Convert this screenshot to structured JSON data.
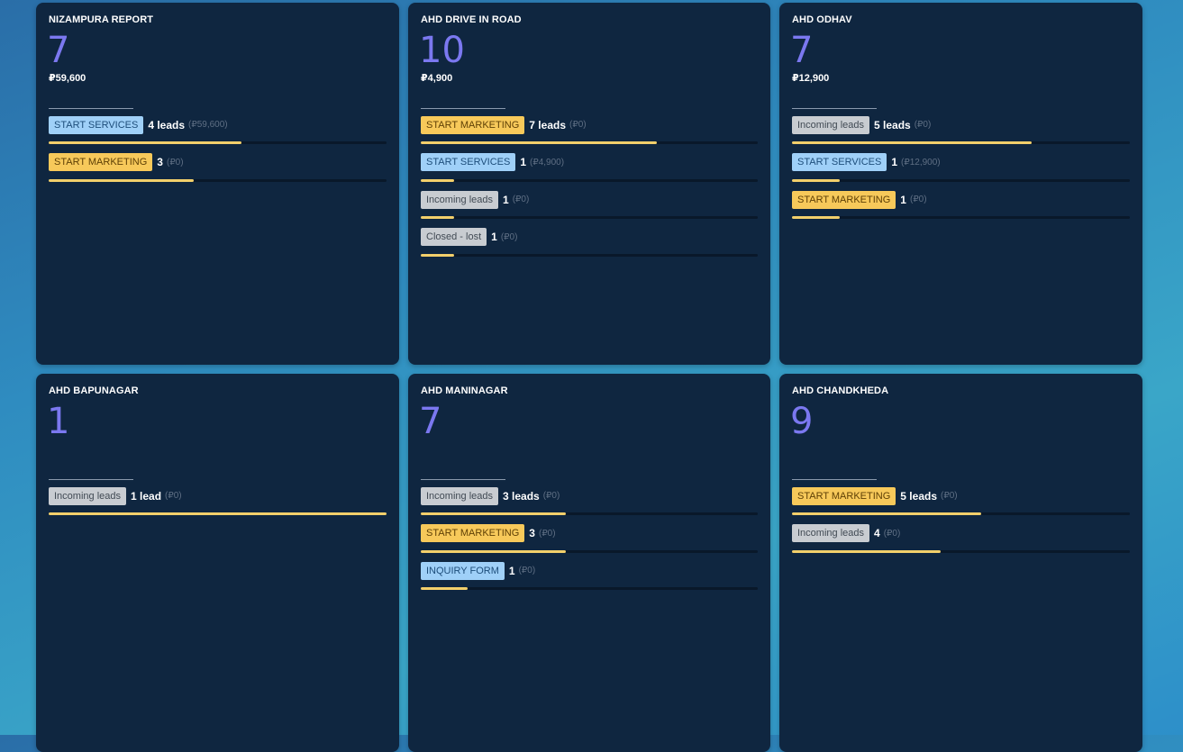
{
  "cards": [
    {
      "title": "NIZAMPURA REPORT",
      "count": "7",
      "amount": "₽59,600",
      "rows": [
        {
          "tag": "START SERVICES",
          "color": "blue",
          "count": "4 leads",
          "amount": "(₽59,600)",
          "fraction": 0.57
        },
        {
          "tag": "START MARKETING",
          "color": "yellow",
          "count": "3",
          "amount": "(₽0)",
          "fraction": 0.43
        }
      ]
    },
    {
      "title": "AHD DRIVE IN ROAD",
      "count": "10",
      "amount": "₽4,900",
      "rows": [
        {
          "tag": "START MARKETING",
          "color": "yellow",
          "count": "7 leads",
          "amount": "(₽0)",
          "fraction": 0.7
        },
        {
          "tag": "START SERVICES",
          "color": "blue",
          "count": "1",
          "amount": "(₽4,900)",
          "fraction": 0.1
        },
        {
          "tag": "Incoming leads",
          "color": "grey",
          "count": "1",
          "amount": "(₽0)",
          "fraction": 0.1
        },
        {
          "tag": "Closed - lost",
          "color": "grey",
          "count": "1",
          "amount": "(₽0)",
          "fraction": 0.1
        }
      ]
    },
    {
      "title": "AHD ODHAV",
      "count": "7",
      "amount": "₽12,900",
      "rows": [
        {
          "tag": "Incoming leads",
          "color": "grey",
          "count": "5 leads",
          "amount": "(₽0)",
          "fraction": 0.71
        },
        {
          "tag": "START SERVICES",
          "color": "blue",
          "count": "1",
          "amount": "(₽12,900)",
          "fraction": 0.14
        },
        {
          "tag": "START MARKETING",
          "color": "yellow",
          "count": "1",
          "amount": "(₽0)",
          "fraction": 0.14
        }
      ]
    },
    {
      "title": "AHD BAPUNAGAR",
      "count": "1",
      "amount": "",
      "rows": [
        {
          "tag": "Incoming leads",
          "color": "grey",
          "count": "1 lead",
          "amount": "(₽0)",
          "fraction": 1.0
        }
      ]
    },
    {
      "title": "AHD MANINAGAR",
      "count": "7",
      "amount": "",
      "rows": [
        {
          "tag": "Incoming leads",
          "color": "grey",
          "count": "3 leads",
          "amount": "(₽0)",
          "fraction": 0.43
        },
        {
          "tag": "START MARKETING",
          "color": "yellow",
          "count": "3",
          "amount": "(₽0)",
          "fraction": 0.43
        },
        {
          "tag": "INQUIRY FORM",
          "color": "blue",
          "count": "1",
          "amount": "(₽0)",
          "fraction": 0.14
        }
      ]
    },
    {
      "title": "AHD CHANDKHEDA",
      "count": "9",
      "amount": "",
      "rows": [
        {
          "tag": "START MARKETING",
          "color": "yellow",
          "count": "5 leads",
          "amount": "(₽0)",
          "fraction": 0.56
        },
        {
          "tag": "Incoming leads",
          "color": "grey",
          "count": "4",
          "amount": "(₽0)",
          "fraction": 0.44
        }
      ]
    }
  ]
}
